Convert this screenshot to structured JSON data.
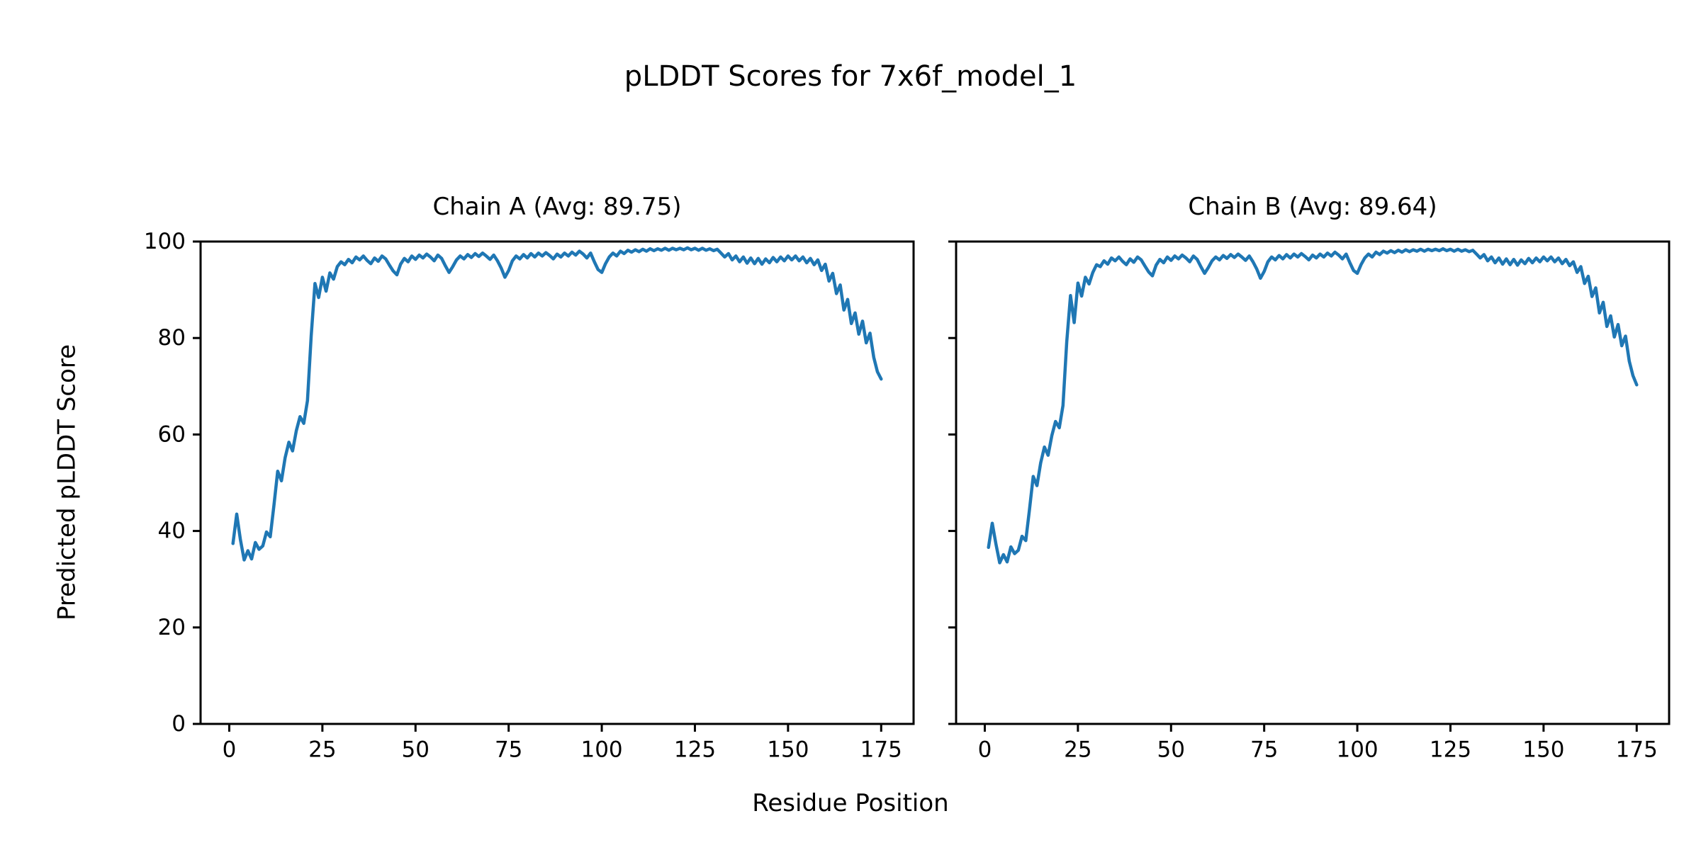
{
  "figure": {
    "title": "pLDDT Scores for 7x6f_model_1",
    "xlabel": "Residue Position",
    "ylabel": "Predicted pLDDT Score",
    "background_color": "#ffffff",
    "axis_color": "#000000",
    "line_color": "#1f77b4"
  },
  "chart_data": [
    {
      "type": "line",
      "title": "Chain A (Avg: 89.75)",
      "average_plddt": 89.75,
      "xlabel": "Residue Position",
      "ylabel": "Predicted pLDDT Score",
      "xlim": [
        -7.7,
        183.7
      ],
      "ylim": [
        0,
        100
      ],
      "xticks": [
        0,
        25,
        50,
        75,
        100,
        125,
        150,
        175
      ],
      "yticks": [
        0,
        20,
        40,
        60,
        80,
        100
      ],
      "ytick_labels_visible": true,
      "grid": false,
      "legend": "none",
      "line_color": "#1f77b4",
      "x_start": 1,
      "n_points": 175,
      "values": [
        37.4,
        43.5,
        38.2,
        34.0,
        35.9,
        34.2,
        37.6,
        36.2,
        36.9,
        39.8,
        38.8,
        45.3,
        52.4,
        50.4,
        55.2,
        58.4,
        56.6,
        60.8,
        63.7,
        62.3,
        67.0,
        80.5,
        91.3,
        88.4,
        92.6,
        89.7,
        93.5,
        92.2,
        94.8,
        95.8,
        95.2,
        96.3,
        95.6,
        96.8,
        96.2,
        97.0,
        96.1,
        95.4,
        96.6,
        95.9,
        97.0,
        96.4,
        95.1,
        93.9,
        93.1,
        95.3,
        96.5,
        95.8,
        97.0,
        96.3,
        97.2,
        96.6,
        97.4,
        96.8,
        96.0,
        97.2,
        96.5,
        95.0,
        93.6,
        94.8,
        96.2,
        97.0,
        96.4,
        97.3,
        96.7,
        97.5,
        96.9,
        97.6,
        97.0,
        96.3,
        97.2,
        96.0,
        94.5,
        92.6,
        94.0,
        96.0,
        97.0,
        96.4,
        97.3,
        96.6,
        97.5,
        96.8,
        97.6,
        97.0,
        97.7,
        97.1,
        96.4,
        97.4,
        96.8,
        97.6,
        97.0,
        97.8,
        97.2,
        98.0,
        97.4,
        96.6,
        97.6,
        95.8,
        94.2,
        93.6,
        95.4,
        96.8,
        97.6,
        97.0,
        98.0,
        97.5,
        98.2,
        97.8,
        98.3,
        97.9,
        98.4,
        98.0,
        98.5,
        98.1,
        98.5,
        98.2,
        98.6,
        98.2,
        98.6,
        98.3,
        98.6,
        98.3,
        98.7,
        98.3,
        98.6,
        98.2,
        98.6,
        98.2,
        98.5,
        98.1,
        98.4,
        97.6,
        96.8,
        97.5,
        96.2,
        97.0,
        95.8,
        96.8,
        95.5,
        96.6,
        95.4,
        96.5,
        95.3,
        96.4,
        95.6,
        96.7,
        95.8,
        96.8,
        96.0,
        97.0,
        96.2,
        97.0,
        96.0,
        96.8,
        95.6,
        96.5,
        95.2,
        96.2,
        94.0,
        95.3,
        91.8,
        93.4,
        89.2,
        91.0,
        85.8,
        88.0,
        83.0,
        85.2,
        80.8,
        83.5,
        79.0,
        81.0,
        76.0,
        73.0,
        71.5
      ]
    },
    {
      "type": "line",
      "title": "Chain B (Avg: 89.64)",
      "average_plddt": 89.64,
      "xlabel": "Residue Position",
      "ylabel": "Predicted pLDDT Score",
      "xlim": [
        -7.7,
        183.7
      ],
      "ylim": [
        0,
        100
      ],
      "xticks": [
        0,
        25,
        50,
        75,
        100,
        125,
        150,
        175
      ],
      "yticks": [
        0,
        20,
        40,
        60,
        80,
        100
      ],
      "ytick_labels_visible": false,
      "grid": false,
      "legend": "none",
      "line_color": "#1f77b4",
      "x_start": 1,
      "n_points": 175,
      "values": [
        36.6,
        41.6,
        37.3,
        33.4,
        35.1,
        33.6,
        36.7,
        35.3,
        36.0,
        38.9,
        38.0,
        44.4,
        51.3,
        49.4,
        54.1,
        57.4,
        55.7,
        59.8,
        62.7,
        61.4,
        66.0,
        79.2,
        88.8,
        83.2,
        91.4,
        88.7,
        92.6,
        91.2,
        93.6,
        95.2,
        94.8,
        96.0,
        95.3,
        96.6,
        96.0,
        96.8,
        95.9,
        95.2,
        96.4,
        95.7,
        96.8,
        96.2,
        94.9,
        93.7,
        92.9,
        95.1,
        96.3,
        95.6,
        96.8,
        96.1,
        97.0,
        96.4,
        97.2,
        96.6,
        95.8,
        97.0,
        96.3,
        94.8,
        93.4,
        94.6,
        96.0,
        96.8,
        96.2,
        97.1,
        96.5,
        97.3,
        96.7,
        97.4,
        96.8,
        96.1,
        97.0,
        95.8,
        94.3,
        92.4,
        93.8,
        95.8,
        96.8,
        96.2,
        97.1,
        96.4,
        97.3,
        96.6,
        97.4,
        96.8,
        97.5,
        96.9,
        96.2,
        97.2,
        96.6,
        97.4,
        96.8,
        97.6,
        97.0,
        97.8,
        97.2,
        96.4,
        97.4,
        95.6,
        94.0,
        93.4,
        95.2,
        96.6,
        97.4,
        96.8,
        97.8,
        97.3,
        98.0,
        97.6,
        98.1,
        97.7,
        98.2,
        97.8,
        98.3,
        97.9,
        98.3,
        98.0,
        98.4,
        98.0,
        98.4,
        98.1,
        98.4,
        98.1,
        98.5,
        98.1,
        98.4,
        98.0,
        98.4,
        98.0,
        98.3,
        97.9,
        98.2,
        97.4,
        96.6,
        97.3,
        96.0,
        96.8,
        95.6,
        96.6,
        95.3,
        96.4,
        95.2,
        96.3,
        95.1,
        96.2,
        95.4,
        96.5,
        95.6,
        96.6,
        95.8,
        96.8,
        96.0,
        96.8,
        95.8,
        96.6,
        95.4,
        96.3,
        95.0,
        95.8,
        93.6,
        94.8,
        91.3,
        92.8,
        88.6,
        90.4,
        85.2,
        87.4,
        82.4,
        84.6,
        80.2,
        82.8,
        78.4,
        80.4,
        75.2,
        72.2,
        70.3
      ]
    }
  ]
}
